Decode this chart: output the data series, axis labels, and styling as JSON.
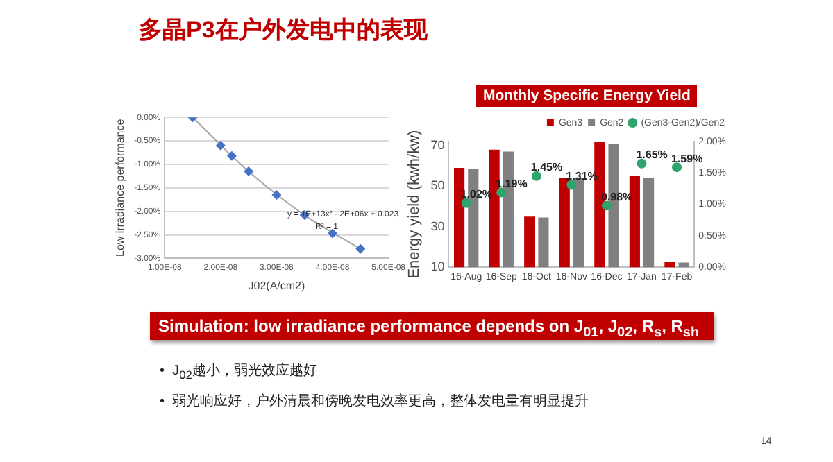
{
  "chart_data": [
    {
      "type": "scatter",
      "title": "多晶P3在户外发电中的表现",
      "xlabel": "J02(A/cm2)",
      "ylabel": "Low irradiance performance",
      "series": [
        {
          "color": "#4472c4",
          "x": [
            1.5e-08,
            2e-08,
            2.2e-08,
            2.5e-08,
            3e-08,
            3.5e-08,
            4e-08,
            4.5e-08
          ],
          "values": [
            0,
            -0.6,
            -0.82,
            -1.15,
            -1.65,
            -2.08,
            -2.47,
            -2.8
          ]
        },
        {
          "type": "line",
          "marker": "none",
          "color": "#a5a5a5",
          "x": [
            1.5e-08,
            2.5e-08,
            3.5e-08,
            4.5e-08
          ],
          "values": [
            0,
            -1.15,
            -2.08,
            -2.8
          ]
        }
      ],
      "xlim": [
        1e-08,
        5e-08
      ],
      "xticks": [
        {
          "value": 1e-08,
          "label": "1.00E-08"
        },
        {
          "value": 2e-08,
          "label": "2.00E-08"
        },
        {
          "value": 3e-08,
          "label": "3.00E-08"
        },
        {
          "value": 4e-08,
          "label": "4.00E-08"
        },
        {
          "value": 5e-08,
          "label": "5.00E-08"
        }
      ],
      "ylim": [
        -3,
        0
      ],
      "yticks": [
        {
          "value": 0,
          "label": "0.00%"
        },
        {
          "value": -0.5,
          "label": "-0.50%"
        },
        {
          "value": -1,
          "label": "-1.00%"
        },
        {
          "value": -1.5,
          "label": "-1.50%"
        },
        {
          "value": -2,
          "label": "-2.00%"
        },
        {
          "value": -2.5,
          "label": "-2.50%"
        },
        {
          "value": -3,
          "label": "-3.00%"
        }
      ],
      "grid": "y",
      "marker": "diamond",
      "annotations": [
        "y = 1E+13x² - 2E+06x + 0.023",
        "R² = 1",
        "Simulation: low irradiance performance depends on J$_{01}$, J$_{02}$, R$_{s}$, R$_{sh}$",
        "•  J$_{02}$越小，弱光效应越好",
        "•  弱光响应好，户外清晨和傍晚发电效率更高，整体发电量有明显提升",
        "14"
      ]
    },
    {
      "type": "bar",
      "title": "Monthly Specific Energy Yield",
      "ylabel": "Energy yield (kwh/kw)",
      "categories": [
        "16-Aug",
        "16-Sep",
        "16-Oct",
        "16-Nov",
        "16-Dec",
        "17-Jan",
        "17-Feb"
      ],
      "series": [
        {
          "name": "Gen3",
          "color": "#c00000",
          "values": [
            59,
            68,
            35,
            54,
            72,
            55,
            12.5
          ]
        },
        {
          "name": "Gen2",
          "color": "#808080",
          "values": [
            58.5,
            67,
            34.5,
            54,
            71,
            54,
            12.3
          ]
        },
        {
          "name": "(Gen3-Gen2)/Gen2",
          "type": "scatter",
          "axis": "y2",
          "color": "#2ea36b",
          "values": [
            1.02,
            1.19,
            1.45,
            1.31,
            0.98,
            1.65,
            1.59
          ],
          "value_labels": [
            "1.02%",
            "1.19%",
            "1.45%",
            "1.31%",
            "0.98%",
            "1.65%",
            "1.59%"
          ]
        }
      ],
      "ylim": [
        10,
        72
      ],
      "yticks": [
        10,
        30,
        50,
        70
      ],
      "y2lim": [
        0,
        2
      ],
      "y2ticks": [
        {
          "value": 0,
          "label": "0.00%"
        },
        {
          "value": 0.5,
          "label": "0.50%"
        },
        {
          "value": 1,
          "label": "1.00%"
        },
        {
          "value": 1.5,
          "label": "1.50%"
        },
        {
          "value": 2,
          "label": "2.00%"
        }
      ],
      "legend": "top right",
      "marker": "circle"
    }
  ]
}
